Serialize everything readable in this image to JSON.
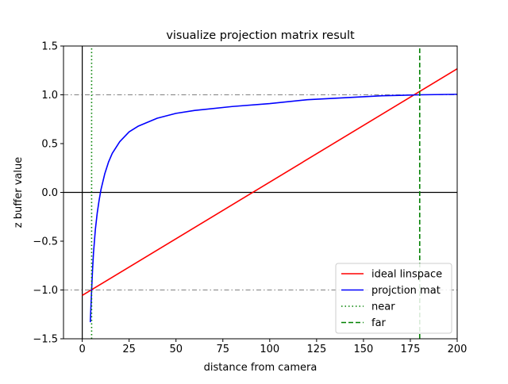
{
  "chart_data": {
    "type": "line",
    "title": "visualize projection matrix result",
    "xlabel": "distance from camera",
    "ylabel": "z buffer value",
    "xlim": [
      -10,
      200
    ],
    "ylim": [
      -1.5,
      1.5
    ],
    "x_ticks": [
      0,
      25,
      50,
      75,
      100,
      125,
      150,
      175,
      200
    ],
    "y_ticks": [
      -1.5,
      -1.0,
      -0.5,
      0.0,
      0.5,
      1.0,
      1.5
    ],
    "x_tick_labels": [
      "0",
      "25",
      "50",
      "75",
      "100",
      "125",
      "150",
      "175",
      "200"
    ],
    "y_tick_labels": [
      "−1.5",
      "−1.0",
      "−0.5",
      "0.0",
      "0.5",
      "1.0",
      "1.5"
    ],
    "grid": false,
    "legend_position": "lower-right",
    "near": 5,
    "far": 180,
    "series": [
      {
        "name": "ideal linspace",
        "color": "#ff0000",
        "style": "solid",
        "x": [
          0,
          200
        ],
        "y": [
          -1.0556,
          1.2667
        ]
      },
      {
        "name": "projction mat",
        "color": "#0000ff",
        "style": "solid",
        "x": [
          4.3,
          5,
          5.5,
          6,
          7,
          8,
          9,
          10,
          12,
          14,
          16,
          20,
          25,
          30,
          40,
          50,
          60,
          80,
          100,
          120,
          140,
          160,
          180,
          200
        ],
        "y": [
          -1.33,
          -1.0,
          -0.79,
          -0.62,
          -0.38,
          -0.21,
          -0.08,
          0.03,
          0.19,
          0.31,
          0.4,
          0.52,
          0.62,
          0.68,
          0.76,
          0.81,
          0.84,
          0.88,
          0.91,
          0.95,
          0.97,
          0.99,
          1.0,
          1.005
        ]
      },
      {
        "name": "near",
        "color": "#008000",
        "style": "dotted",
        "x": [
          5,
          5
        ],
        "y": [
          -1.5,
          1.5
        ]
      },
      {
        "name": "far",
        "color": "#008000",
        "style": "dashed",
        "x": [
          180,
          180
        ],
        "y": [
          -1.5,
          1.5
        ]
      }
    ],
    "reference_lines": {
      "horizontal_dashdot": [
        1.0,
        -1.0
      ],
      "horizontal_solid": [
        0.0
      ],
      "vertical_solid": [
        0
      ]
    }
  }
}
